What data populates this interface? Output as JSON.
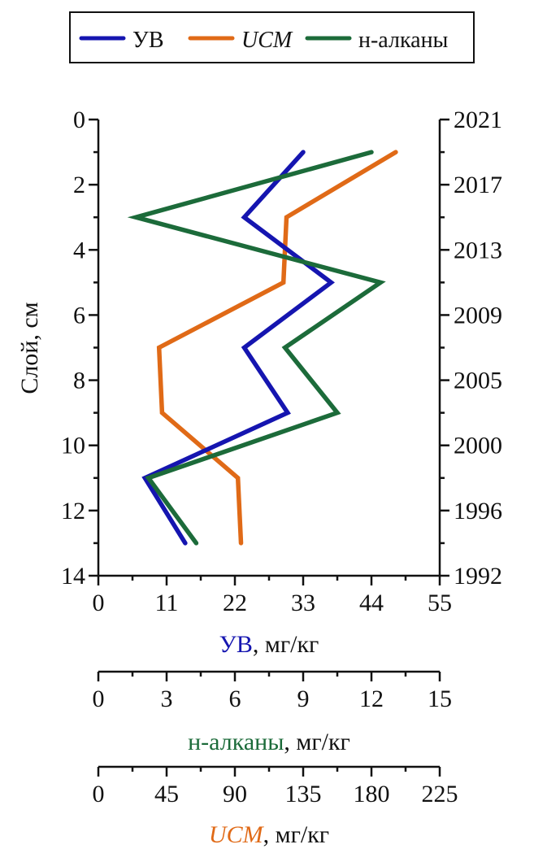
{
  "chart_data": {
    "type": "line",
    "legend": {
      "position": "top",
      "entries": [
        {
          "label": "УВ",
          "color": "#1515b0",
          "italic": false
        },
        {
          "label": "UCM",
          "color": "#e06a17",
          "italic": true
        },
        {
          "label": "н-алканы",
          "color": "#1c6b3a",
          "italic": false
        }
      ]
    },
    "y_axis": {
      "label": "Слой, см",
      "range": [
        0,
        14
      ],
      "ticks": [
        "0",
        "2",
        "4",
        "6",
        "8",
        "10",
        "12",
        "14"
      ],
      "inverted": true
    },
    "y2_axis": {
      "ticks": [
        "2021",
        "2017",
        "2013",
        "2009",
        "2005",
        "2000",
        "1996",
        "1992"
      ]
    },
    "x_axes": [
      {
        "id": "uv",
        "label_colored": "УВ",
        "label_rest": ", мг/кг",
        "color": "#1515b0",
        "italic": false,
        "range": [
          0,
          55
        ],
        "ticks": [
          "0",
          "11",
          "22",
          "33",
          "44",
          "55"
        ]
      },
      {
        "id": "alkanes",
        "label_colored": "н-алканы",
        "label_rest": ", мг/кг",
        "color": "#1c6b3a",
        "italic": false,
        "range": [
          0,
          15
        ],
        "ticks": [
          "0",
          "3",
          "6",
          "9",
          "12",
          "15"
        ]
      },
      {
        "id": "ucm",
        "label_colored": "UCM",
        "label_rest": ", мг/кг",
        "color": "#e06a17",
        "italic": true,
        "range": [
          0,
          225
        ],
        "ticks": [
          "0",
          "45",
          "90",
          "135",
          "180",
          "225"
        ]
      }
    ],
    "series": [
      {
        "name": "УВ",
        "axis": "uv",
        "color": "#1515b0",
        "depth": [
          1,
          3,
          5,
          7,
          9,
          11,
          13
        ],
        "values": [
          33,
          23.5,
          37.5,
          23.5,
          30.5,
          7.5,
          14
        ]
      },
      {
        "name": "UCM",
        "axis": "ucm",
        "color": "#e06a17",
        "depth": [
          1,
          3,
          5,
          7,
          9,
          11,
          13
        ],
        "values": [
          196,
          124,
          122,
          40,
          42,
          92,
          94
        ]
      },
      {
        "name": "н-алканы",
        "axis": "alkanes",
        "color": "#1c6b3a",
        "depth": [
          1,
          3,
          5,
          7,
          9,
          11,
          13
        ],
        "values": [
          12,
          1.65,
          12.4,
          8.2,
          10.5,
          2.2,
          4.3
        ]
      }
    ],
    "grid": false
  }
}
